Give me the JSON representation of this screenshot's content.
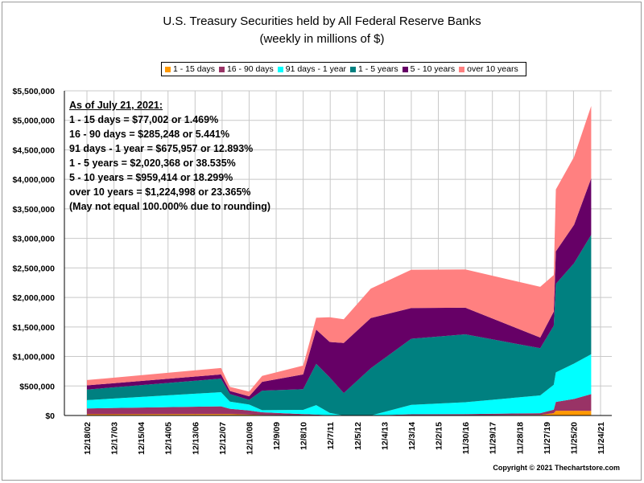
{
  "chart_data": {
    "type": "area",
    "title": "U.S. Treasury Securities held by All Federal Reserve Banks",
    "subtitle": "(weekly in millions of $)",
    "xlabel": "",
    "ylabel": "",
    "ylim": [
      0,
      5500000
    ],
    "y_ticks": [
      "$0",
      "$500,000",
      "$1,000,000",
      "$1,500,000",
      "$2,000,000",
      "$2,500,000",
      "$3,000,000",
      "$3,500,000",
      "$4,000,000",
      "$4,500,000",
      "$5,000,000",
      "$5,500,000"
    ],
    "x_ticks": [
      "12/18/02",
      "12/17/03",
      "12/15/04",
      "12/14/05",
      "12/13/06",
      "12/12/07",
      "12/10/08",
      "12/9/09",
      "12/8/10",
      "12/7/11",
      "12/5/12",
      "12/4/13",
      "12/3/14",
      "12/2/15",
      "11/30/16",
      "11/29/17",
      "11/28/18",
      "11/27/19",
      "11/25/20",
      "11/24/21"
    ],
    "x_start": "2002-12-18",
    "x_end": "2021-11-24",
    "grid": true,
    "legend_position": "top",
    "stack_order": [
      "1 - 15 days",
      "16 - 90 days",
      "91 days - 1 year",
      "1 - 5 years",
      "5 - 10 years",
      "over 10 years"
    ],
    "series": [
      {
        "name": "1 - 15 days",
        "color": "#FF9900",
        "x": [
          "2002-12-18",
          "2007-11-28",
          "2008-03-26",
          "2008-12-10",
          "2009-06-03",
          "2010-12-08",
          "2011-06-01",
          "2011-11-30",
          "2012-06-06",
          "2013-06-05",
          "2014-12-03",
          "2016-11-30",
          "2019-09-04",
          "2020-03-04",
          "2020-04-01",
          "2020-12-02",
          "2021-07-21"
        ],
        "values": [
          20000,
          25000,
          25000,
          15000,
          10000,
          5000,
          5000,
          5000,
          0,
          0,
          0,
          5000,
          10000,
          40000,
          80000,
          80000,
          77002
        ]
      },
      {
        "name": "16 - 90 days",
        "color": "#993366",
        "x": [
          "2002-12-18",
          "2007-11-28",
          "2008-03-26",
          "2008-12-10",
          "2009-06-03",
          "2010-12-08",
          "2011-06-01",
          "2011-11-30",
          "2012-06-06",
          "2013-06-05",
          "2014-12-03",
          "2016-11-30",
          "2019-09-04",
          "2020-03-04",
          "2020-04-01",
          "2020-12-02",
          "2021-07-21"
        ],
        "values": [
          100000,
          130000,
          90000,
          70000,
          45000,
          20000,
          10000,
          0,
          0,
          0,
          20000,
          20000,
          30000,
          60000,
          150000,
          200000,
          285248
        ]
      },
      {
        "name": "91 days - 1 year",
        "color": "#00FFFF",
        "x": [
          "2002-12-18",
          "2007-11-28",
          "2008-03-26",
          "2008-12-10",
          "2009-06-03",
          "2010-12-08",
          "2011-06-01",
          "2011-11-30",
          "2012-06-06",
          "2013-06-05",
          "2014-12-03",
          "2016-11-30",
          "2019-09-04",
          "2020-03-04",
          "2020-04-01",
          "2020-12-02",
          "2021-07-21"
        ],
        "values": [
          140000,
          240000,
          120000,
          100000,
          35000,
          70000,
          160000,
          40000,
          0,
          0,
          160000,
          200000,
          300000,
          420000,
          500000,
          600000,
          675957
        ]
      },
      {
        "name": "1 - 5 years",
        "color": "#008080",
        "x": [
          "2002-12-18",
          "2007-11-28",
          "2008-03-26",
          "2008-12-10",
          "2009-06-03",
          "2010-12-08",
          "2011-06-01",
          "2011-11-30",
          "2012-06-06",
          "2013-06-05",
          "2014-12-03",
          "2016-11-30",
          "2019-09-04",
          "2020-03-04",
          "2020-04-01",
          "2020-12-02",
          "2021-07-21"
        ],
        "values": [
          180000,
          230000,
          130000,
          80000,
          330000,
          350000,
          700000,
          600000,
          380000,
          800000,
          1120000,
          1150000,
          800000,
          1000000,
          1500000,
          1700000,
          2020368
        ]
      },
      {
        "name": "5 - 10 years",
        "color": "#660066",
        "x": [
          "2002-12-18",
          "2007-11-28",
          "2008-03-26",
          "2008-12-10",
          "2009-06-03",
          "2010-12-08",
          "2011-06-01",
          "2011-11-30",
          "2012-06-06",
          "2013-06-05",
          "2014-12-03",
          "2016-11-30",
          "2019-09-04",
          "2020-03-04",
          "2020-04-01",
          "2020-12-02",
          "2021-07-21"
        ],
        "values": [
          70000,
          70000,
          50000,
          60000,
          150000,
          250000,
          580000,
          600000,
          850000,
          850000,
          520000,
          450000,
          180000,
          240000,
          550000,
          650000,
          959414
        ]
      },
      {
        "name": "over 10 years",
        "color": "#FF8080",
        "x": [
          "2002-12-18",
          "2007-11-28",
          "2008-03-26",
          "2008-12-10",
          "2009-06-03",
          "2010-12-08",
          "2011-06-01",
          "2011-11-30",
          "2012-06-06",
          "2013-06-05",
          "2014-12-03",
          "2016-11-30",
          "2019-09-04",
          "2020-03-04",
          "2020-04-01",
          "2020-12-02",
          "2021-07-21"
        ],
        "values": [
          90000,
          110000,
          70000,
          80000,
          100000,
          150000,
          200000,
          420000,
          400000,
          500000,
          650000,
          650000,
          860000,
          620000,
          1050000,
          1150000,
          1224998
        ]
      }
    ]
  },
  "annotation": {
    "heading": "As of July 21, 2021:",
    "lines": [
      "1 - 15 days = $77,002 or 1.469%",
      "16 - 90 days = $285,248 or 5.441%",
      "91 days - 1 year = $675,957 or 12.893%",
      "1 - 5 years = $2,020,368 or 38.535%",
      "5 - 10 years = $959,414 or 18.299%",
      "over 10 years = $1,224,998 or 23.365%",
      "(May not equal 100.000% due to rounding)"
    ]
  },
  "copyright": "Copyright © 2021 Thechartstore.com"
}
